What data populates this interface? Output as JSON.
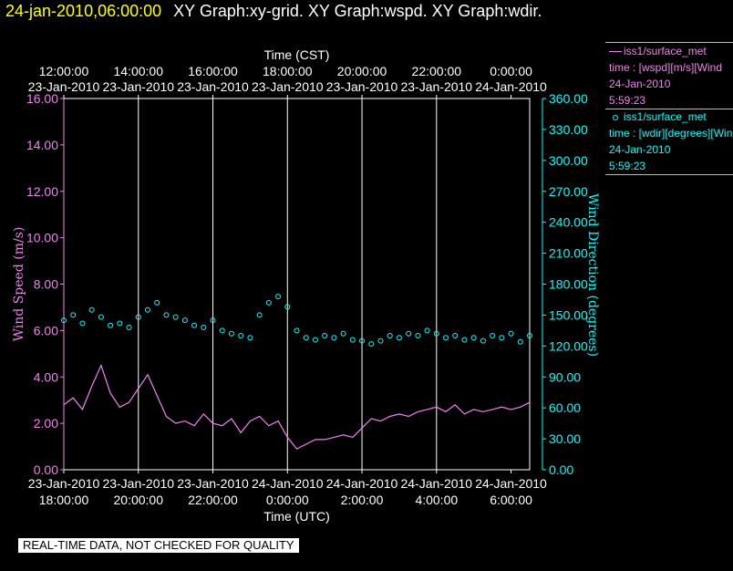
{
  "header": {
    "timestamp": "24-jan-2010,06:00:00",
    "titles": "XY Graph:xy-grid.  XY Graph:wspd.  XY Graph:wdir."
  },
  "legend": {
    "wspd": {
      "line1": "iss1/surface_met",
      "line2": "time : [wspd][m/s][Wind",
      "line3": "24-Jan-2010",
      "line4": "5:59:23"
    },
    "wdir": {
      "line1": "iss1/surface_met",
      "line2": "time : [wdir][degrees][Wind",
      "line3": "24-Jan-2010",
      "line4": "5:59:23"
    }
  },
  "footer": {
    "qc_note": "REAL-TIME DATA, NOT CHECKED FOR QUALITY"
  },
  "colors": {
    "wspd": "#ee82ee",
    "wdir": "#00ffff",
    "grid": "#ffffff",
    "header_time": "#ffff00"
  },
  "chart_data": {
    "type": "line",
    "top_axis_title": "Time (CST)",
    "bottom_axis_title": "Time (UTC)",
    "x_hours_utc_range": [
      18,
      30.5
    ],
    "top_ticks": [
      {
        "time": "12:00:00",
        "date": "23-Jan-2010"
      },
      {
        "time": "14:00:00",
        "date": "23-Jan-2010"
      },
      {
        "time": "16:00:00",
        "date": "23-Jan-2010"
      },
      {
        "time": "18:00:00",
        "date": "23-Jan-2010"
      },
      {
        "time": "20:00:00",
        "date": "23-Jan-2010"
      },
      {
        "time": "22:00:00",
        "date": "23-Jan-2010"
      },
      {
        "time": "0:00:00",
        "date": "24-Jan-2010"
      }
    ],
    "bottom_ticks": [
      {
        "date": "23-Jan-2010",
        "time": "18:00:00"
      },
      {
        "date": "23-Jan-2010",
        "time": "20:00:00"
      },
      {
        "date": "23-Jan-2010",
        "time": "22:00:00"
      },
      {
        "date": "24-Jan-2010",
        "time": "0:00:00"
      },
      {
        "date": "24-Jan-2010",
        "time": "2:00:00"
      },
      {
        "date": "24-Jan-2010",
        "time": "4:00:00"
      },
      {
        "date": "24-Jan-2010",
        "time": "6:00:00"
      }
    ],
    "left_axis": {
      "label": "Wind Speed (m/s)",
      "range": [
        0,
        16
      ],
      "ticks": [
        "0.00",
        "2.00",
        "4.00",
        "6.00",
        "8.00",
        "10.00",
        "12.00",
        "14.00",
        "16.00"
      ]
    },
    "right_axis": {
      "label": "Wind Direction (degrees)",
      "range": [
        0,
        360
      ],
      "ticks": [
        "0.00",
        "30.00",
        "60.00",
        "90.00",
        "120.00",
        "150.00",
        "180.00",
        "210.00",
        "240.00",
        "270.00",
        "300.00",
        "330.00",
        "360.00"
      ]
    },
    "grid": true,
    "series": [
      {
        "name": "iss1/surface_met wspd",
        "axis": "left",
        "style": "line",
        "hours": [
          18.0,
          18.25,
          18.5,
          18.75,
          19.0,
          19.25,
          19.5,
          19.75,
          20.0,
          20.25,
          20.5,
          20.75,
          21.0,
          21.25,
          21.5,
          21.75,
          22.0,
          22.25,
          22.5,
          22.75,
          23.0,
          23.25,
          23.5,
          23.75,
          24.0,
          24.25,
          24.5,
          24.75,
          25.0,
          25.25,
          25.5,
          25.75,
          26.0,
          26.25,
          26.5,
          26.75,
          27.0,
          27.25,
          27.5,
          27.75,
          28.0,
          28.25,
          28.5,
          28.75,
          29.0,
          29.25,
          29.5,
          29.75,
          30.0,
          30.25,
          30.5
        ],
        "values": [
          2.8,
          3.1,
          2.6,
          3.6,
          4.5,
          3.3,
          2.7,
          2.9,
          3.5,
          4.1,
          3.2,
          2.3,
          2.0,
          2.1,
          1.9,
          2.4,
          2.0,
          1.9,
          2.2,
          1.6,
          2.1,
          2.3,
          1.9,
          2.1,
          1.4,
          0.9,
          1.1,
          1.3,
          1.3,
          1.4,
          1.5,
          1.4,
          1.8,
          2.2,
          2.1,
          2.3,
          2.4,
          2.3,
          2.5,
          2.6,
          2.7,
          2.5,
          2.8,
          2.4,
          2.6,
          2.5,
          2.6,
          2.7,
          2.6,
          2.7,
          2.9
        ]
      },
      {
        "name": "iss1/surface_met wdir",
        "axis": "right",
        "style": "points",
        "hours": [
          18.0,
          18.25,
          18.5,
          18.75,
          19.0,
          19.25,
          19.5,
          19.75,
          20.0,
          20.25,
          20.5,
          20.75,
          21.0,
          21.25,
          21.5,
          21.75,
          22.0,
          22.25,
          22.5,
          22.75,
          23.0,
          23.25,
          23.5,
          23.75,
          24.0,
          24.25,
          24.5,
          24.75,
          25.0,
          25.25,
          25.5,
          25.75,
          26.0,
          26.25,
          26.5,
          26.75,
          27.0,
          27.25,
          27.5,
          27.75,
          28.0,
          28.25,
          28.5,
          28.75,
          29.0,
          29.25,
          29.5,
          29.75,
          30.0,
          30.25,
          30.5
        ],
        "values": [
          145,
          150,
          142,
          155,
          148,
          140,
          142,
          138,
          148,
          155,
          162,
          150,
          148,
          145,
          140,
          138,
          145,
          135,
          132,
          130,
          128,
          150,
          162,
          168,
          158,
          135,
          128,
          126,
          130,
          128,
          132,
          126,
          125,
          122,
          125,
          130,
          128,
          132,
          130,
          135,
          132,
          128,
          130,
          126,
          128,
          125,
          130,
          128,
          132,
          124,
          130
        ]
      }
    ]
  }
}
